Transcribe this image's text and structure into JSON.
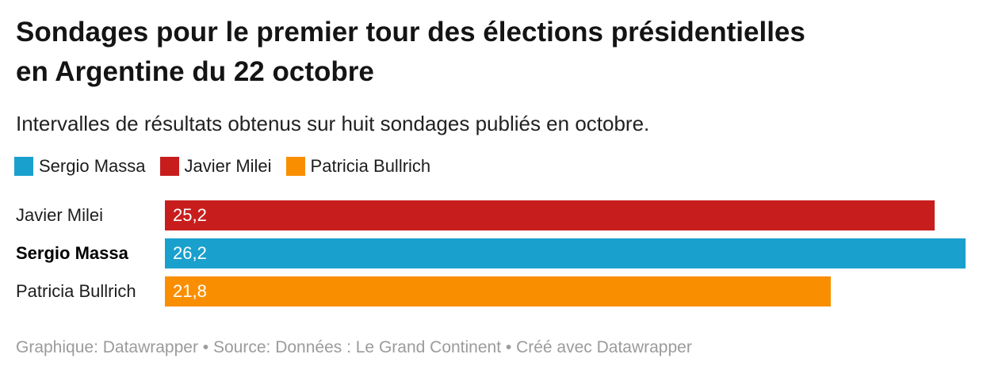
{
  "header": {
    "title": "Sondages pour le premier tour des élections présidentielles\nen Argentine du 22 octobre",
    "subtitle": "Intervalles de résultats obtenus sur huit sondages publiés en octobre."
  },
  "legend": {
    "items": [
      {
        "label": "Sergio Massa",
        "color": "#1aa0cd"
      },
      {
        "label": "Javier Milei",
        "color": "#c71e1d"
      },
      {
        "label": "Patricia Bullrich",
        "color": "#f98f00"
      }
    ]
  },
  "chart_data": {
    "type": "bar",
    "orientation": "horizontal",
    "title": "Sondages pour le premier tour des élections présidentielles en Argentine du 22 octobre",
    "subtitle": "Intervalles de résultats obtenus sur huit sondages publiés en octobre.",
    "categories": [
      "Javier Milei",
      "Sergio Massa",
      "Patricia Bullrich"
    ],
    "values": [
      25.2,
      26.2,
      21.8
    ],
    "value_labels": [
      "25,2",
      "26,2",
      "21,8"
    ],
    "colors": [
      "#c71e1d",
      "#1aa0cd",
      "#f98f00"
    ],
    "emphasized_category": "Sergio Massa",
    "xlim": [
      0,
      26.8
    ],
    "grid": false,
    "legend_position": "top",
    "value_label_position": "inside-start"
  },
  "footer": {
    "text": "Graphique: Datawrapper • Source: Données : Le Grand Continent • Créé avec Datawrapper"
  }
}
